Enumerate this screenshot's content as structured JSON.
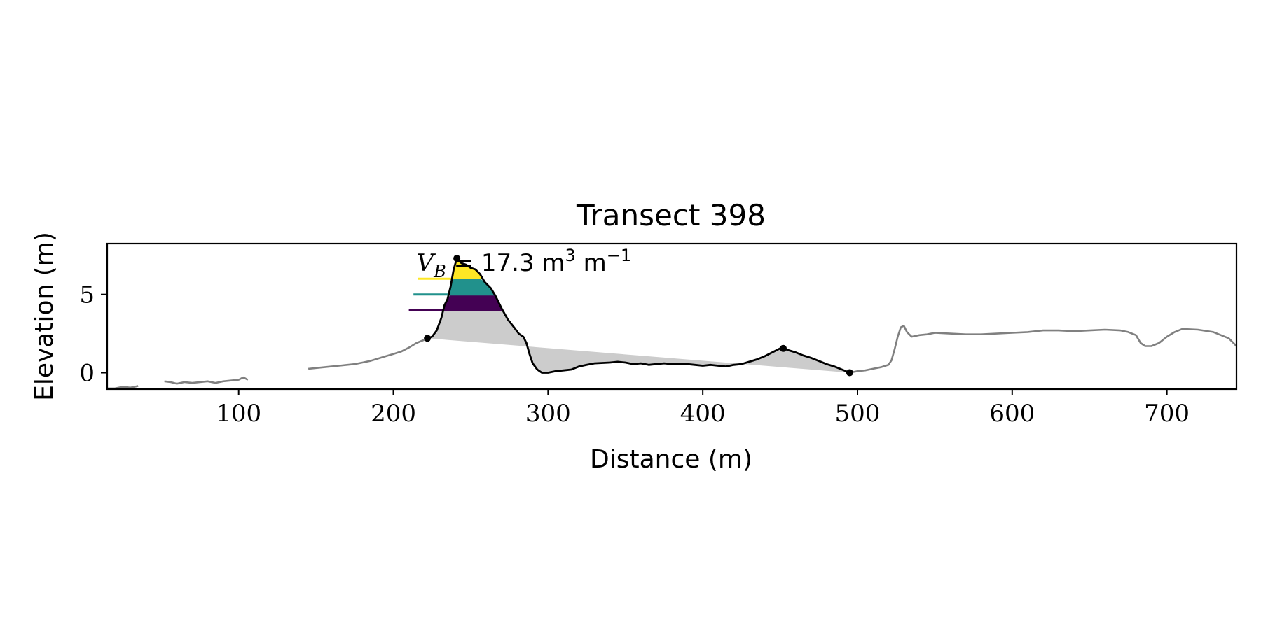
{
  "chart_data": {
    "type": "line",
    "title": "Transect 398",
    "xlabel": "Distance (m)",
    "ylabel": "Elevation (m)",
    "xlim": [
      15,
      745
    ],
    "ylim": [
      -1.05,
      8.25
    ],
    "xticks": [
      {
        "value": 100,
        "label": "100"
      },
      {
        "value": 200,
        "label": "200"
      },
      {
        "value": 300,
        "label": "300"
      },
      {
        "value": 400,
        "label": "400"
      },
      {
        "value": 500,
        "label": "500"
      },
      {
        "value": 600,
        "label": "600"
      },
      {
        "value": 700,
        "label": "700"
      }
    ],
    "yticks": [
      {
        "value": 0,
        "label": "0"
      },
      {
        "value": 5,
        "label": "5"
      }
    ],
    "annotation": {
      "var": "V",
      "sub": "B",
      "value_text": " = 17.3 m",
      "sup1": "3",
      "mid": " m",
      "sup2": "−1",
      "x": 215,
      "y": 6.5
    },
    "colors": {
      "profile": "#808080",
      "dune": "#000000",
      "fill": "#cccccc",
      "levels": [
        "#440154",
        "#21918c",
        "#fde725"
      ]
    },
    "series": [
      {
        "role": "background-profile",
        "segments": [
          [
            [
              15,
              -1.0
            ],
            [
              20,
              -1.0
            ],
            [
              25,
              -0.9
            ],
            [
              30,
              -0.95
            ],
            [
              35,
              -0.85
            ]
          ],
          [
            [
              52,
              -0.55
            ],
            [
              56,
              -0.6
            ],
            [
              60,
              -0.7
            ],
            [
              65,
              -0.6
            ],
            [
              70,
              -0.65
            ],
            [
              75,
              -0.6
            ],
            [
              80,
              -0.55
            ],
            [
              85,
              -0.65
            ],
            [
              90,
              -0.55
            ],
            [
              95,
              -0.5
            ],
            [
              100,
              -0.45
            ],
            [
              103,
              -0.3
            ],
            [
              106,
              -0.45
            ]
          ],
          [
            [
              145,
              0.25
            ],
            [
              150,
              0.3
            ],
            [
              155,
              0.35
            ],
            [
              160,
              0.4
            ],
            [
              165,
              0.45
            ],
            [
              170,
              0.5
            ],
            [
              175,
              0.55
            ],
            [
              180,
              0.65
            ],
            [
              185,
              0.75
            ],
            [
              190,
              0.9
            ],
            [
              195,
              1.05
            ],
            [
              200,
              1.2
            ],
            [
              205,
              1.35
            ],
            [
              210,
              1.6
            ],
            [
              215,
              1.9
            ],
            [
              220,
              2.1
            ]
          ],
          [
            [
              495,
              0.0
            ],
            [
              500,
              0.1
            ],
            [
              505,
              0.15
            ],
            [
              510,
              0.25
            ],
            [
              515,
              0.35
            ],
            [
              520,
              0.5
            ],
            [
              522,
              0.8
            ],
            [
              524,
              1.5
            ],
            [
              526,
              2.3
            ],
            [
              528,
              2.9
            ],
            [
              530,
              3.0
            ],
            [
              532,
              2.6
            ],
            [
              535,
              2.3
            ],
            [
              540,
              2.4
            ],
            [
              545,
              2.45
            ],
            [
              550,
              2.55
            ],
            [
              560,
              2.5
            ],
            [
              570,
              2.45
            ],
            [
              580,
              2.45
            ],
            [
              590,
              2.5
            ],
            [
              600,
              2.55
            ],
            [
              610,
              2.6
            ],
            [
              620,
              2.7
            ],
            [
              630,
              2.7
            ],
            [
              640,
              2.65
            ],
            [
              650,
              2.7
            ],
            [
              660,
              2.75
            ],
            [
              670,
              2.7
            ],
            [
              675,
              2.6
            ],
            [
              680,
              2.4
            ],
            [
              683,
              1.9
            ],
            [
              686,
              1.7
            ],
            [
              690,
              1.7
            ],
            [
              695,
              1.9
            ],
            [
              700,
              2.3
            ],
            [
              705,
              2.6
            ],
            [
              710,
              2.8
            ],
            [
              720,
              2.75
            ],
            [
              730,
              2.6
            ],
            [
              740,
              2.2
            ],
            [
              745,
              1.7
            ]
          ]
        ]
      },
      {
        "role": "dune-profile",
        "points": [
          [
            222,
            2.2
          ],
          [
            225,
            2.3
          ],
          [
            228,
            2.7
          ],
          [
            231,
            3.5
          ],
          [
            233,
            4.3
          ],
          [
            235,
            4.7
          ],
          [
            237,
            5.5
          ],
          [
            239,
            6.6
          ],
          [
            241,
            7.3
          ],
          [
            244,
            7.0
          ],
          [
            247,
            6.9
          ],
          [
            250,
            6.7
          ],
          [
            253,
            6.6
          ],
          [
            256,
            6.3
          ],
          [
            259,
            5.8
          ],
          [
            263,
            5.4
          ],
          [
            266,
            4.9
          ],
          [
            270,
            4.1
          ],
          [
            274,
            3.4
          ],
          [
            278,
            2.9
          ],
          [
            281,
            2.5
          ],
          [
            284,
            2.3
          ],
          [
            286,
            1.9
          ],
          [
            288,
            1.2
          ],
          [
            290,
            0.6
          ],
          [
            293,
            0.2
          ],
          [
            296,
            0.0
          ],
          [
            300,
            0.0
          ],
          [
            305,
            0.1
          ],
          [
            310,
            0.15
          ],
          [
            315,
            0.2
          ],
          [
            320,
            0.4
          ],
          [
            325,
            0.5
          ],
          [
            330,
            0.6
          ],
          [
            340,
            0.65
          ],
          [
            345,
            0.7
          ],
          [
            350,
            0.65
          ],
          [
            355,
            0.55
          ],
          [
            360,
            0.6
          ],
          [
            365,
            0.5
          ],
          [
            370,
            0.55
          ],
          [
            375,
            0.6
          ],
          [
            380,
            0.55
          ],
          [
            390,
            0.55
          ],
          [
            395,
            0.5
          ],
          [
            400,
            0.45
          ],
          [
            405,
            0.5
          ],
          [
            410,
            0.45
          ],
          [
            415,
            0.4
          ],
          [
            420,
            0.5
          ],
          [
            425,
            0.55
          ],
          [
            430,
            0.7
          ],
          [
            435,
            0.85
          ],
          [
            440,
            1.05
          ],
          [
            445,
            1.3
          ],
          [
            450,
            1.55
          ],
          [
            452,
            1.55
          ],
          [
            455,
            1.45
          ],
          [
            460,
            1.3
          ],
          [
            465,
            1.1
          ],
          [
            470,
            0.95
          ],
          [
            475,
            0.75
          ],
          [
            480,
            0.55
          ],
          [
            485,
            0.4
          ],
          [
            490,
            0.2
          ],
          [
            495,
            0.0
          ]
        ]
      },
      {
        "role": "markers",
        "points": [
          [
            222,
            2.2
          ],
          [
            241,
            7.3
          ],
          [
            452,
            1.55
          ],
          [
            495,
            0.0
          ]
        ]
      },
      {
        "role": "level-lines",
        "levels": [
          {
            "y": 4.0,
            "x_start": 210
          },
          {
            "y": 5.0,
            "x_start": 213
          },
          {
            "y": 6.0,
            "x_start": 216
          }
        ]
      }
    ]
  }
}
